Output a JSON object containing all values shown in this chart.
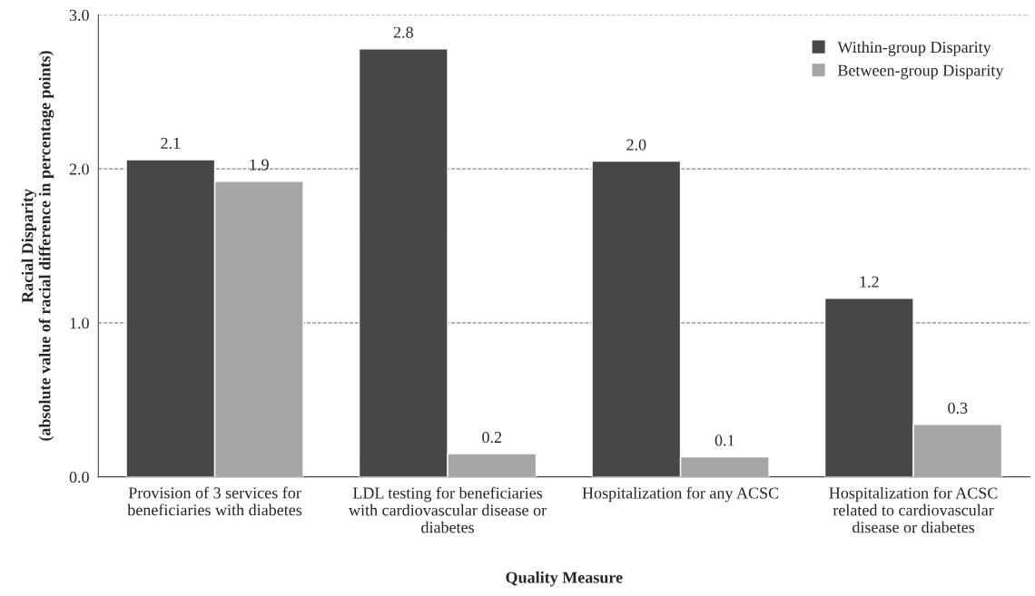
{
  "chart_data": {
    "type": "bar",
    "categories": [
      "Provision of 3 services for\nbeneficiaries with diabetes",
      "LDL testing for beneficiaries\nwith cardiovascular disease or\ndiabetes",
      "Hospitalization for any ACSC",
      "Hospitalization for ACSC\nrelated to cardiovascular\ndisease or diabetes"
    ],
    "series": [
      {
        "name": "Within-group Disparity",
        "color": "#474747",
        "values": [
          2.06,
          2.78,
          2.05,
          1.16
        ],
        "value_labels": [
          "2.1",
          "2.8",
          "2.0",
          "1.2"
        ]
      },
      {
        "name": "Between-group Disparity",
        "color": "#a6a6a6",
        "values": [
          1.92,
          0.15,
          0.13,
          0.34
        ],
        "value_labels": [
          "1.9",
          "0.2",
          "0.1",
          "0.3"
        ]
      }
    ],
    "xlabel": "Quality Measure",
    "ylabel": "Racial Disparity\n(absolute value of racial difference in percentage points)",
    "ylim": [
      0,
      3
    ],
    "yticks": [
      {
        "value": 0,
        "label": "0.0"
      },
      {
        "value": 1,
        "label": "1.0"
      },
      {
        "value": 2,
        "label": "2.0"
      },
      {
        "value": 3,
        "label": "3.0"
      }
    ],
    "grid": "y",
    "legend": "top right"
  }
}
